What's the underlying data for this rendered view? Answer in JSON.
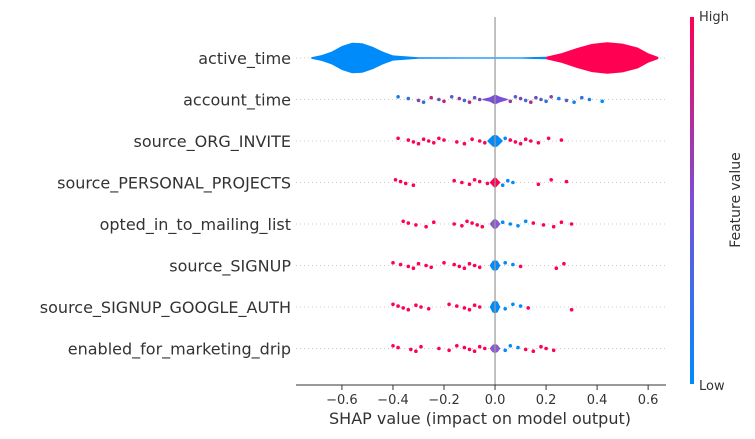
{
  "chart_data": {
    "type": "violin",
    "xlabel": "SHAP value (impact on model output)",
    "xlim": [
      -0.78,
      0.67
    ],
    "xticks": [
      -0.6,
      -0.4,
      -0.2,
      0.0,
      0.2,
      0.4,
      0.6
    ],
    "xtick_labels": [
      "−0.6",
      "−0.4",
      "−0.2",
      "0.0",
      "0.2",
      "0.4",
      "0.6"
    ],
    "colorbar": {
      "title": "Feature value",
      "high_label": "High",
      "low_label": "Low",
      "high_color": "#ff0052",
      "low_color": "#008bfb"
    },
    "features": [
      {
        "name": "active_time",
        "violin": [
          [
            -0.72,
            0.05
          ],
          [
            -0.68,
            0.18
          ],
          [
            -0.64,
            0.4
          ],
          [
            -0.6,
            0.75
          ],
          [
            -0.56,
            0.95
          ],
          [
            -0.52,
            0.92
          ],
          [
            -0.48,
            0.7
          ],
          [
            -0.44,
            0.4
          ],
          [
            -0.4,
            0.16
          ],
          [
            -0.3,
            0.05
          ],
          [
            -0.1,
            0.04
          ],
          [
            0.1,
            0.04
          ],
          [
            0.2,
            0.08
          ],
          [
            0.26,
            0.3
          ],
          [
            0.32,
            0.62
          ],
          [
            0.38,
            0.88
          ],
          [
            0.44,
            0.98
          ],
          [
            0.5,
            0.9
          ],
          [
            0.56,
            0.65
          ],
          [
            0.6,
            0.3
          ],
          [
            0.64,
            0.06
          ]
        ],
        "dots": [],
        "red_from": 0.2
      },
      {
        "name": "account_time",
        "violin": [
          [
            -0.05,
            0.05
          ],
          [
            -0.02,
            0.25
          ],
          [
            0.0,
            0.55
          ],
          [
            0.02,
            0.3
          ],
          [
            0.05,
            0.05
          ]
        ],
        "dots": [
          [
            -0.38,
            0.1
          ],
          [
            -0.34,
            0.2
          ],
          [
            -0.3,
            0.5
          ],
          [
            -0.28,
            0.2
          ],
          [
            -0.25,
            0.7
          ],
          [
            -0.22,
            0.4
          ],
          [
            -0.2,
            0.8
          ],
          [
            -0.17,
            0.3
          ],
          [
            -0.14,
            0.6
          ],
          [
            -0.12,
            0.2
          ],
          [
            -0.1,
            0.7
          ],
          [
            -0.08,
            0.4
          ],
          [
            -0.06,
            0.5
          ],
          [
            0.06,
            0.6
          ],
          [
            0.08,
            0.3
          ],
          [
            0.1,
            0.5
          ],
          [
            0.12,
            0.2
          ],
          [
            0.14,
            0.7
          ],
          [
            0.16,
            0.4
          ],
          [
            0.18,
            0.3
          ],
          [
            0.2,
            0.2
          ],
          [
            0.22,
            0.5
          ],
          [
            0.25,
            0.1
          ],
          [
            0.28,
            0.3
          ],
          [
            0.31,
            0.1
          ],
          [
            0.34,
            0.2
          ],
          [
            0.37,
            0.1
          ],
          [
            0.42,
            0.0
          ]
        ],
        "red_from": 99
      },
      {
        "name": "source_ORG_INVITE",
        "violin": [
          [
            -0.03,
            0.05
          ],
          [
            -0.01,
            0.6
          ],
          [
            0.0,
            0.7
          ],
          [
            0.01,
            0.6
          ],
          [
            0.03,
            0.05
          ]
        ],
        "dots": [
          [
            -0.38,
            1
          ],
          [
            -0.34,
            1
          ],
          [
            -0.32,
            1
          ],
          [
            -0.3,
            1
          ],
          [
            -0.28,
            1
          ],
          [
            -0.26,
            1
          ],
          [
            -0.24,
            1
          ],
          [
            -0.22,
            1
          ],
          [
            -0.2,
            1
          ],
          [
            -0.15,
            1
          ],
          [
            -0.12,
            1
          ],
          [
            -0.09,
            1
          ],
          [
            -0.06,
            1
          ],
          [
            -0.04,
            1
          ],
          [
            0.04,
            0
          ],
          [
            0.06,
            1
          ],
          [
            0.08,
            1
          ],
          [
            0.1,
            1
          ],
          [
            0.12,
            1
          ],
          [
            0.14,
            1
          ],
          [
            0.17,
            1
          ],
          [
            0.21,
            1
          ],
          [
            0.26,
            1
          ]
        ],
        "red_from": -99
      },
      {
        "name": "source_PERSONAL_PROJECTS",
        "violin": [
          [
            -0.02,
            0.05
          ],
          [
            -0.005,
            0.5
          ],
          [
            0.0,
            0.6
          ],
          [
            0.005,
            0.5
          ],
          [
            0.02,
            0.05
          ]
        ],
        "dots": [
          [
            -0.39,
            1
          ],
          [
            -0.37,
            1
          ],
          [
            -0.35,
            1
          ],
          [
            -0.32,
            1
          ],
          [
            -0.16,
            1
          ],
          [
            -0.13,
            1
          ],
          [
            -0.1,
            1
          ],
          [
            -0.08,
            1
          ],
          [
            -0.06,
            1
          ],
          [
            -0.03,
            1
          ],
          [
            0.03,
            0
          ],
          [
            0.05,
            0
          ],
          [
            0.07,
            0
          ],
          [
            0.17,
            1
          ],
          [
            0.22,
            1
          ],
          [
            0.28,
            1
          ]
        ],
        "red_from": -99
      },
      {
        "name": "opted_in_to_mailing_list",
        "violin": [
          [
            -0.02,
            0.05
          ],
          [
            -0.01,
            0.4
          ],
          [
            0.0,
            0.6
          ],
          [
            0.01,
            0.4
          ],
          [
            0.02,
            0.05
          ]
        ],
        "dots": [
          [
            -0.36,
            1
          ],
          [
            -0.34,
            1
          ],
          [
            -0.31,
            1
          ],
          [
            -0.27,
            1
          ],
          [
            -0.24,
            1
          ],
          [
            -0.16,
            1
          ],
          [
            -0.13,
            1
          ],
          [
            -0.11,
            1
          ],
          [
            -0.09,
            1
          ],
          [
            -0.07,
            1
          ],
          [
            -0.05,
            1
          ],
          [
            0.03,
            0
          ],
          [
            0.06,
            0
          ],
          [
            0.09,
            0
          ],
          [
            0.12,
            0
          ],
          [
            0.15,
            1
          ],
          [
            0.19,
            1
          ],
          [
            0.23,
            1
          ],
          [
            0.26,
            1
          ],
          [
            0.3,
            1
          ]
        ],
        "red_from": -99
      },
      {
        "name": "source_SIGNUP",
        "violin": [
          [
            -0.02,
            0.05
          ],
          [
            -0.01,
            0.5
          ],
          [
            0.0,
            0.6
          ],
          [
            0.01,
            0.5
          ],
          [
            0.02,
            0.05
          ]
        ],
        "dots": [
          [
            -0.4,
            1
          ],
          [
            -0.37,
            1
          ],
          [
            -0.34,
            1
          ],
          [
            -0.32,
            1
          ],
          [
            -0.3,
            1
          ],
          [
            -0.27,
            1
          ],
          [
            -0.25,
            1
          ],
          [
            -0.2,
            1
          ],
          [
            -0.16,
            1
          ],
          [
            -0.14,
            1
          ],
          [
            -0.12,
            1
          ],
          [
            -0.1,
            1
          ],
          [
            -0.08,
            1
          ],
          [
            -0.06,
            1
          ],
          [
            0.04,
            0
          ],
          [
            0.07,
            0
          ],
          [
            0.1,
            1
          ],
          [
            0.24,
            1
          ],
          [
            0.27,
            1
          ]
        ],
        "red_from": -99
      },
      {
        "name": "source_SIGNUP_GOOGLE_AUTH",
        "violin": [
          [
            -0.02,
            0.05
          ],
          [
            -0.01,
            0.6
          ],
          [
            0.0,
            0.7
          ],
          [
            0.01,
            0.6
          ],
          [
            0.02,
            0.05
          ]
        ],
        "dots": [
          [
            -0.4,
            1
          ],
          [
            -0.38,
            1
          ],
          [
            -0.36,
            1
          ],
          [
            -0.34,
            1
          ],
          [
            -0.31,
            1
          ],
          [
            -0.29,
            1
          ],
          [
            -0.26,
            1
          ],
          [
            -0.18,
            1
          ],
          [
            -0.15,
            1
          ],
          [
            -0.12,
            1
          ],
          [
            -0.1,
            1
          ],
          [
            -0.08,
            1
          ],
          [
            -0.06,
            1
          ],
          [
            0.04,
            0
          ],
          [
            0.07,
            0
          ],
          [
            0.1,
            0
          ],
          [
            0.13,
            1
          ],
          [
            0.3,
            1
          ]
        ],
        "red_from": -99
      },
      {
        "name": "enabled_for_marketing_drip",
        "violin": [
          [
            -0.02,
            0.05
          ],
          [
            -0.01,
            0.4
          ],
          [
            0.0,
            0.5
          ],
          [
            0.01,
            0.4
          ],
          [
            0.02,
            0.05
          ]
        ],
        "dots": [
          [
            -0.4,
            1
          ],
          [
            -0.38,
            1
          ],
          [
            -0.33,
            1
          ],
          [
            -0.31,
            1
          ],
          [
            -0.29,
            1
          ],
          [
            -0.22,
            1
          ],
          [
            -0.18,
            1
          ],
          [
            -0.15,
            1
          ],
          [
            -0.12,
            1
          ],
          [
            -0.1,
            1
          ],
          [
            -0.08,
            1
          ],
          [
            -0.06,
            1
          ],
          [
            -0.04,
            1
          ],
          [
            0.04,
            0
          ],
          [
            0.06,
            0
          ],
          [
            0.09,
            0
          ],
          [
            0.12,
            1
          ],
          [
            0.15,
            1
          ],
          [
            0.18,
            1
          ],
          [
            0.2,
            1
          ],
          [
            0.23,
            1
          ]
        ],
        "red_from": -99
      }
    ]
  }
}
